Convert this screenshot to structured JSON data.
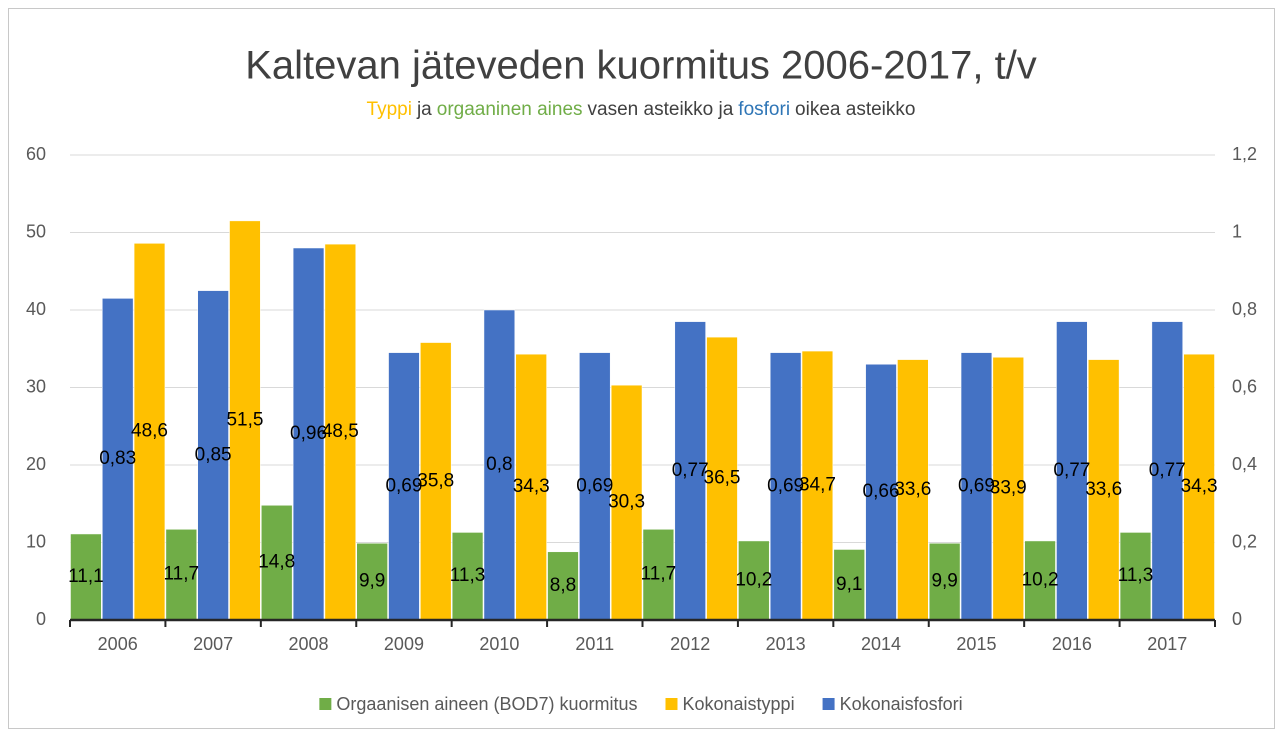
{
  "chart_data": {
    "type": "bar",
    "title": "Kaltevan jäteveden kuormitus 2006-2017, t/v",
    "subtitle": [
      {
        "text": "Typpi",
        "color": "#ffc000"
      },
      {
        "text": "ja",
        "color": "#404040"
      },
      {
        "text": "orgaaninen aines",
        "color": "#70ad47"
      },
      {
        "text": "vasen asteikko ja",
        "color": "#404040"
      },
      {
        "text": "fosfori",
        "color": "#2e75b6"
      },
      {
        "text": "oikea asteikko",
        "color": "#404040"
      }
    ],
    "categories": [
      "2006",
      "2007",
      "2008",
      "2009",
      "2010",
      "2011",
      "2012",
      "2013",
      "2014",
      "2015",
      "2016",
      "2017"
    ],
    "series": [
      {
        "name": "Orgaanisen aineen (BOD7) kuormitus",
        "color": "#70ad47",
        "values": [
          11.1,
          11.7,
          14.8,
          9.9,
          11.3,
          8.8,
          11.7,
          10.2,
          9.1,
          9.9,
          10.2,
          11.3
        ],
        "value_labels": [
          "11,1",
          "11,7",
          "14,8",
          "9,9",
          "11,3",
          "8,8",
          "11,7",
          "10,2",
          "9,1",
          "9,9",
          "10,2",
          "11,3"
        ]
      },
      {
        "name": "Kokonaistyppi",
        "color": "#ffc000",
        "values": [
          48.6,
          51.5,
          48.5,
          35.8,
          34.3,
          30.3,
          36.5,
          34.7,
          33.6,
          33.9,
          33.6,
          34.3
        ],
        "value_labels": [
          "48,6",
          "51,5",
          "48,5",
          "35,8",
          "34,3",
          "30,3",
          "36,5",
          "34,7",
          "33,6",
          "33,9",
          "33,6",
          "34,3"
        ]
      },
      {
        "name": "Kokonaisfosfori",
        "color": "#4472c4",
        "axis": "y2",
        "values": [
          0.83,
          0.85,
          0.96,
          0.69,
          0.8,
          0.69,
          0.77,
          0.69,
          0.66,
          0.69,
          0.77,
          0.77
        ],
        "value_labels": [
          "0,83",
          "0,85",
          "0,96",
          "0,69",
          "0,8",
          "0,69",
          "0,77",
          "0,69",
          "0,66",
          "0,69",
          "0,77",
          "0,77"
        ]
      }
    ],
    "ylim": [
      0,
      60
    ],
    "yticks": [
      0,
      10,
      20,
      30,
      40,
      50,
      60
    ],
    "y2lim": [
      0,
      1.2
    ],
    "y2ticks": [
      0,
      {
        "value": 0.2,
        "label": "0,2"
      },
      {
        "value": 0.4,
        "label": "0,4"
      },
      {
        "value": 0.6,
        "label": "0,6"
      },
      {
        "value": 0.8,
        "label": "0,8"
      },
      1,
      {
        "value": 1.2,
        "label": "1,2"
      }
    ],
    "grid": true,
    "legend": "bottom"
  }
}
